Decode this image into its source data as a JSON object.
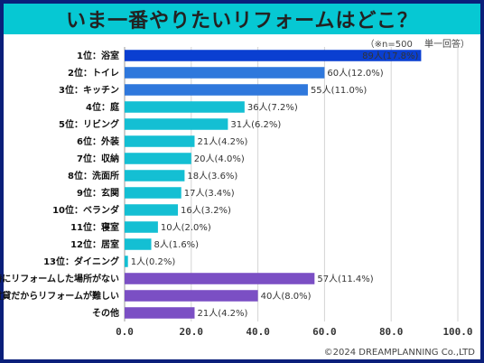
{
  "title": "いま一番やりたいリフォームはどこ？",
  "note": "（※n=500　 単一回答）",
  "credit": "©2024 DREAMPLANNING Co.,LTD",
  "chart_data": {
    "type": "bar",
    "orientation": "horizontal",
    "xlim": [
      0,
      100
    ],
    "ticks": [
      0,
      20,
      40,
      60,
      80,
      100
    ],
    "tick_labels": [
      "0.0",
      "20.0",
      "40.0",
      "60.0",
      "80.0",
      "100.0"
    ],
    "grid": true,
    "categories": [
      "1位：浴室",
      "2位：トイレ",
      "3位：キッチン",
      "4位：庭",
      "5位：リビング",
      "6位：外装",
      "7位：収納",
      "8位：洗面所",
      "9位：玄関",
      "10位：ベランダ",
      "11位：寝室",
      "12位：居室",
      "13位：ダイニング",
      "特にリフォームした場所がない",
      "賃貸だからリフォームが難しい",
      "その他"
    ],
    "values": [
      89,
      60,
      55,
      36,
      31,
      21,
      20,
      18,
      17,
      16,
      10,
      8,
      1,
      57,
      40,
      21
    ],
    "labels": [
      "89人(17.8%)",
      "60人(12.0%)",
      "55人(11.0%)",
      "36人(7.2%)",
      "31人(6.2%)",
      "21人(4.2%)",
      "20人(4.0%)",
      "18人(3.6%)",
      "17人(3.4%)",
      "16人(3.2%)",
      "10人(2.0%)",
      "8人(1.6%)",
      "1人(0.2%)",
      "57人(11.4%)",
      "40人(8.0%)",
      "21人(4.2%)"
    ],
    "colors": [
      "#0a3fd1",
      "#2f78dc",
      "#2f78dc",
      "#14bfd3",
      "#14bfd3",
      "#14bfd3",
      "#14bfd3",
      "#14bfd3",
      "#14bfd3",
      "#14bfd3",
      "#14bfd3",
      "#14bfd3",
      "#14bfd3",
      "#7b4fc4",
      "#7b4fc4",
      "#7b4fc4"
    ],
    "highlight_label_index": 0
  }
}
